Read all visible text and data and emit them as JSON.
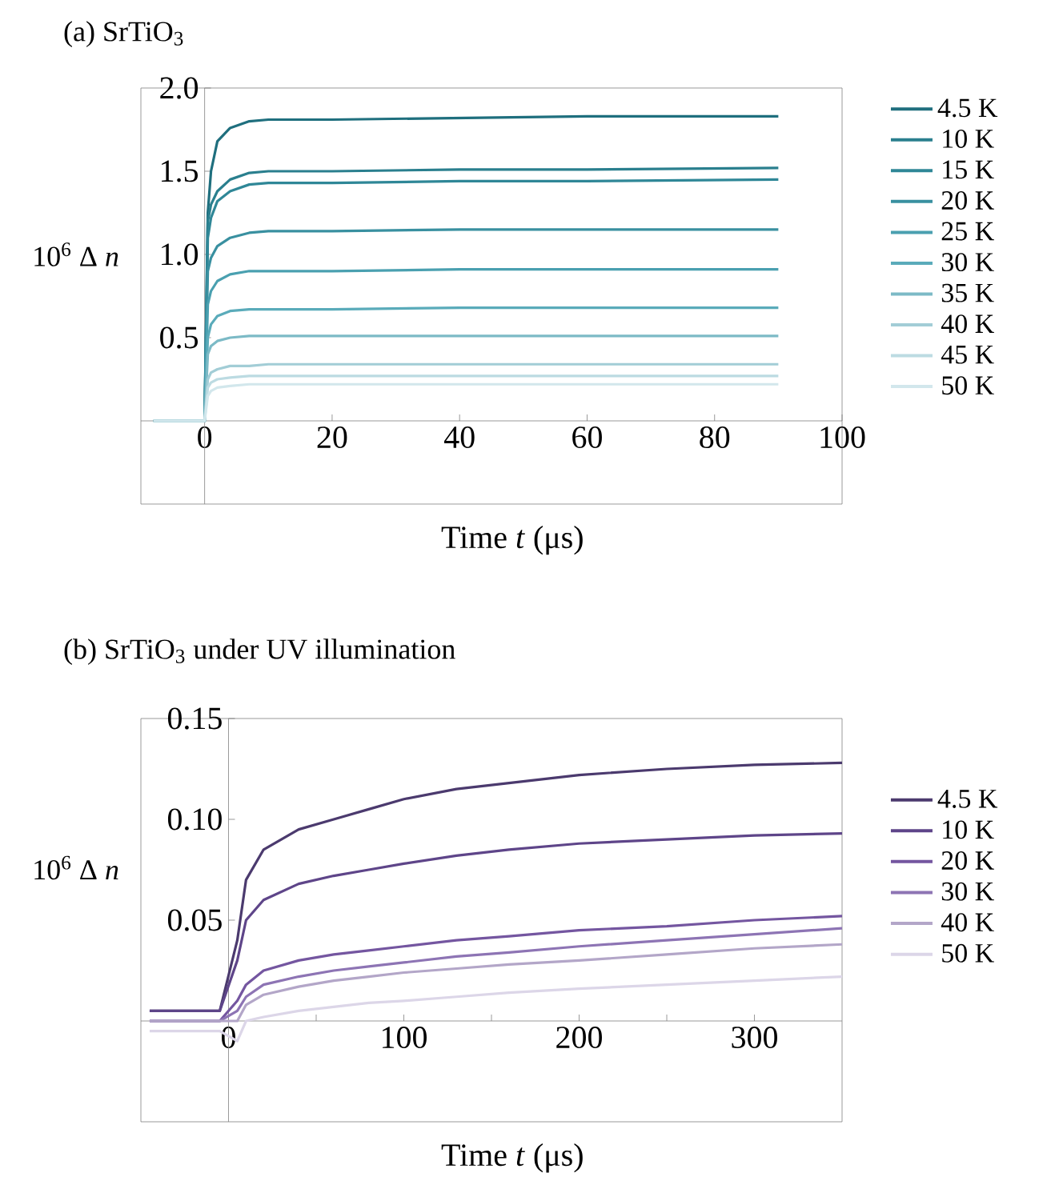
{
  "chart_data": [
    {
      "type": "line",
      "title": "(a) SrTiO$_{3}$",
      "xlabel": "Time  *t* (μs)",
      "ylabel": "10$^{6}$ Δ *n*",
      "xlim": [
        -10,
        100
      ],
      "ylim": [
        -0.5,
        2.0
      ],
      "xticks": [
        0,
        20,
        40,
        60,
        80,
        100
      ],
      "yticks": [
        {
          "value": 0.5,
          "label": "0.5"
        },
        {
          "value": 1.0,
          "label": "1.0"
        },
        {
          "value": 1.5,
          "label": "1.5"
        },
        {
          "value": 2.0,
          "label": "2.0"
        }
      ],
      "legend": "right",
      "grid": false,
      "line_style": "solid",
      "x": [
        -8,
        -4,
        0,
        0.5,
        1,
        2,
        4,
        7,
        10,
        20,
        40,
        60,
        90
      ],
      "series": [
        {
          "name": "4.5 K",
          "color": "#1f6f7e",
          "values": [
            0,
            0,
            0,
            1.25,
            1.5,
            1.68,
            1.76,
            1.8,
            1.81,
            1.81,
            1.82,
            1.83,
            1.83
          ]
        },
        {
          "name": "10 K",
          "color": "#2a7f8e",
          "values": [
            0,
            0,
            0,
            1.2,
            1.3,
            1.38,
            1.45,
            1.49,
            1.5,
            1.5,
            1.51,
            1.51,
            1.52
          ]
        },
        {
          "name": "15 K",
          "color": "#2f8797",
          "values": [
            0,
            0,
            0,
            1.1,
            1.22,
            1.32,
            1.38,
            1.42,
            1.43,
            1.43,
            1.44,
            1.44,
            1.45
          ]
        },
        {
          "name": "20 K",
          "color": "#3990a0",
          "values": [
            0,
            0,
            0,
            0.9,
            0.98,
            1.05,
            1.1,
            1.13,
            1.14,
            1.14,
            1.15,
            1.15,
            1.15
          ]
        },
        {
          "name": "25 K",
          "color": "#4aa0b0",
          "values": [
            0,
            0,
            0,
            0.7,
            0.78,
            0.84,
            0.88,
            0.9,
            0.9,
            0.9,
            0.91,
            0.91,
            0.91
          ]
        },
        {
          "name": "30 K",
          "color": "#5aabba",
          "values": [
            0,
            0,
            0,
            0.5,
            0.58,
            0.63,
            0.66,
            0.67,
            0.67,
            0.67,
            0.68,
            0.68,
            0.68
          ]
        },
        {
          "name": "35 K",
          "color": "#7cbac6",
          "values": [
            0,
            0,
            0,
            0.4,
            0.45,
            0.48,
            0.5,
            0.51,
            0.51,
            0.51,
            0.51,
            0.51,
            0.51
          ]
        },
        {
          "name": "40 K",
          "color": "#a2cdd6",
          "values": [
            0,
            0,
            0,
            0.25,
            0.29,
            0.31,
            0.33,
            0.33,
            0.34,
            0.34,
            0.34,
            0.34,
            0.34
          ]
        },
        {
          "name": "45 K",
          "color": "#bcdbe2",
          "values": [
            0,
            0,
            0,
            0.2,
            0.23,
            0.25,
            0.26,
            0.27,
            0.27,
            0.27,
            0.27,
            0.27,
            0.27
          ]
        },
        {
          "name": "50 K",
          "color": "#d2e7ec",
          "values": [
            0,
            0,
            0,
            0.15,
            0.18,
            0.2,
            0.21,
            0.22,
            0.22,
            0.22,
            0.22,
            0.22,
            0.22
          ]
        }
      ]
    },
    {
      "type": "line",
      "title": "(b) SrTiO$_{3}$ under UV illumination",
      "xlabel": "Time  *t* (μs)",
      "ylabel": "10$^{6}$ Δ *n*",
      "xlim": [
        -50,
        350
      ],
      "ylim": [
        -0.05,
        0.15
      ],
      "xticks": [
        0,
        {
          "value": 50,
          "label": null
        },
        100,
        {
          "value": 150,
          "label": null
        },
        200,
        {
          "value": 250,
          "label": null
        },
        300
      ],
      "yticks": [
        {
          "value": 0.05,
          "label": "0.05"
        },
        {
          "value": 0.1,
          "label": "0.10"
        },
        {
          "value": 0.15,
          "label": "0.15"
        }
      ],
      "legend": "right",
      "grid": false,
      "line_style": "solid",
      "x": [
        -45,
        -20,
        -5,
        5,
        10,
        20,
        40,
        60,
        80,
        100,
        130,
        160,
        200,
        250,
        300,
        350
      ],
      "series": [
        {
          "name": "4.5 K",
          "color": "#4b3a6e",
          "values": [
            0.005,
            0.005,
            0.005,
            0.04,
            0.07,
            0.085,
            0.095,
            0.1,
            0.105,
            0.11,
            0.115,
            0.118,
            0.122,
            0.125,
            0.127,
            0.128
          ]
        },
        {
          "name": "10 K",
          "color": "#5e4589",
          "values": [
            0.005,
            0.005,
            0.005,
            0.03,
            0.05,
            0.06,
            0.068,
            0.072,
            0.075,
            0.078,
            0.082,
            0.085,
            0.088,
            0.09,
            0.092,
            0.093
          ]
        },
        {
          "name": "20 K",
          "color": "#7456a0",
          "values": [
            0,
            0,
            0,
            0.01,
            0.018,
            0.025,
            0.03,
            0.033,
            0.035,
            0.037,
            0.04,
            0.042,
            0.045,
            0.047,
            0.05,
            0.052
          ]
        },
        {
          "name": "30 K",
          "color": "#8d74b4",
          "values": [
            0,
            0,
            0,
            0.005,
            0.012,
            0.018,
            0.022,
            0.025,
            0.027,
            0.029,
            0.032,
            0.034,
            0.037,
            0.04,
            0.043,
            0.046
          ]
        },
        {
          "name": "40 K",
          "color": "#b3a6c8",
          "values": [
            0,
            0,
            0,
            0,
            0.008,
            0.013,
            0.017,
            0.02,
            0.022,
            0.024,
            0.026,
            0.028,
            0.03,
            0.033,
            0.036,
            0.038
          ]
        },
        {
          "name": "50 K",
          "color": "#dcd6e8",
          "values": [
            -0.005,
            -0.005,
            -0.005,
            -0.01,
            0,
            0.002,
            0.005,
            0.007,
            0.009,
            0.01,
            0.012,
            0.014,
            0.016,
            0.018,
            0.02,
            0.022
          ]
        }
      ]
    }
  ]
}
